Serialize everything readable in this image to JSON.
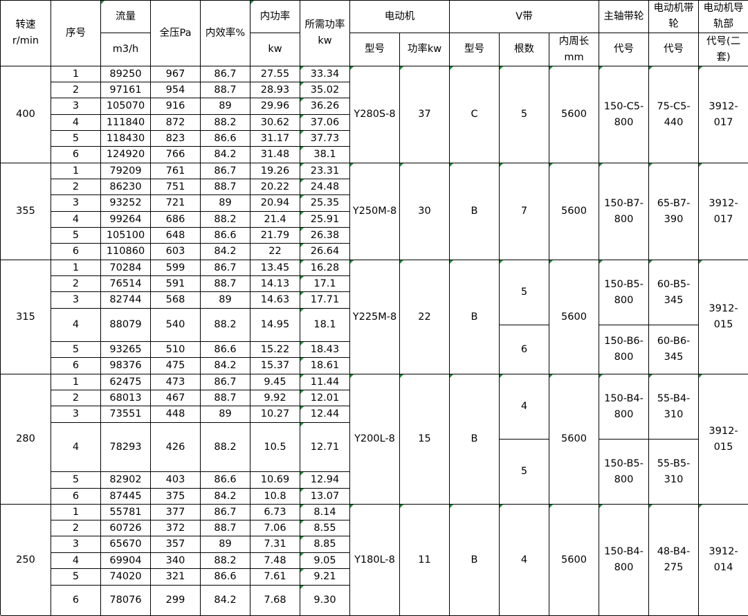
{
  "header": {
    "speed": [
      "转速",
      "r/min"
    ],
    "seq": "序号",
    "flow": [
      "流量",
      "m3/h"
    ],
    "pressure": "全压Pa",
    "efficiency": "内效率%",
    "inner_power": [
      "内功率",
      "kw"
    ],
    "required_power": [
      "所需功率",
      "kw"
    ],
    "motor": "电动机",
    "motor_model": "型号",
    "motor_power": "功率kw",
    "vbelt": "V带",
    "vbelt_type": "型号",
    "vbelt_count": "根数",
    "vbelt_length": [
      "内周长",
      "mm"
    ],
    "main_pulley": "主轴带轮",
    "main_pulley_code": "代号",
    "motor_pulley": "电动机带轮",
    "motor_pulley_code": "代号",
    "rail": "电动机导轨部",
    "rail_code": "代号(二套)"
  },
  "groups": [
    {
      "speed": "400",
      "rows": [
        [
          "1",
          "89250",
          "967",
          "86.7",
          "27.55",
          "33.34"
        ],
        [
          "2",
          "97161",
          "954",
          "88.7",
          "28.93",
          "35.02"
        ],
        [
          "3",
          "105070",
          "916",
          "89",
          "29.96",
          "36.26"
        ],
        [
          "4",
          "111840",
          "872",
          "88.2",
          "30.62",
          "37.06"
        ],
        [
          "5",
          "118430",
          "823",
          "86.6",
          "31.17",
          "37.73"
        ],
        [
          "6",
          "124920",
          "766",
          "84.2",
          "31.48",
          "38.1"
        ]
      ],
      "motor_model": "Y280S-8",
      "motor_power": "37",
      "belt_type": "C",
      "belt_counts": [
        "5"
      ],
      "belt_length": "5600",
      "main_pulley": [
        "150-C5-800"
      ],
      "motor_pulley": [
        "75-C5-440"
      ],
      "rail": "3912-017"
    },
    {
      "speed": "355",
      "rows": [
        [
          "1",
          "79209",
          "761",
          "86.7",
          "19.26",
          "23.31"
        ],
        [
          "2",
          "86230",
          "751",
          "88.7",
          "20.22",
          "24.48"
        ],
        [
          "3",
          "93252",
          "721",
          "89",
          "20.94",
          "25.35"
        ],
        [
          "4",
          "99264",
          "686",
          "88.2",
          "21.4",
          "25.91"
        ],
        [
          "5",
          "105100",
          "648",
          "86.6",
          "21.79",
          "26.38"
        ],
        [
          "6",
          "110860",
          "603",
          "84.2",
          "22",
          "26.64"
        ]
      ],
      "motor_model": "Y250M-8",
      "motor_power": "30",
      "belt_type": "B",
      "belt_counts": [
        "7"
      ],
      "belt_length": "5600",
      "main_pulley": [
        "150-B7-800"
      ],
      "motor_pulley": [
        "65-B7-390"
      ],
      "rail": "3912-017"
    },
    {
      "speed": "315",
      "rows": [
        [
          "1",
          "70284",
          "599",
          "86.7",
          "13.45",
          "16.28"
        ],
        [
          "2",
          "76514",
          "591",
          "88.7",
          "14.13",
          "17.1"
        ],
        [
          "3",
          "82744",
          "568",
          "89",
          "14.63",
          "17.71"
        ],
        [
          "4",
          "88079",
          "540",
          "88.2",
          "14.95",
          "18.1"
        ],
        [
          "5",
          "93265",
          "510",
          "86.6",
          "15.22",
          "18.43"
        ],
        [
          "6",
          "98376",
          "475",
          "84.2",
          "15.37",
          "18.61"
        ]
      ],
      "motor_model": "Y225M-8",
      "motor_power": "22",
      "belt_type": "B",
      "belt_counts": [
        "5",
        "6"
      ],
      "belt_length": "5600",
      "main_pulley": [
        "150-B5-800",
        "150-B6-800"
      ],
      "motor_pulley": [
        "60-B5-345",
        "60-B6-345"
      ],
      "rail": "3912-015"
    },
    {
      "speed": "280",
      "rows": [
        [
          "1",
          "62475",
          "473",
          "86.7",
          "9.45",
          "11.44"
        ],
        [
          "2",
          "68013",
          "467",
          "88.7",
          "9.92",
          "12.01"
        ],
        [
          "3",
          "73551",
          "448",
          "89",
          "10.27",
          "12.44"
        ],
        [
          "4",
          "78293",
          "426",
          "88.2",
          "10.5",
          "12.71"
        ],
        [
          "5",
          "82902",
          "403",
          "86.6",
          "10.69",
          "12.94"
        ],
        [
          "6",
          "87445",
          "375",
          "84.2",
          "10.8",
          "13.07"
        ]
      ],
      "motor_model": "Y200L-8",
      "motor_power": "15",
      "belt_type": "B",
      "belt_counts": [
        "4",
        "5"
      ],
      "belt_length": "5600",
      "main_pulley": [
        "150-B4-800",
        "150-B5-800"
      ],
      "motor_pulley": [
        "55-B4-310",
        "55-B5-310"
      ],
      "rail": "3912-015"
    },
    {
      "speed": "250",
      "rows": [
        [
          "1",
          "55781",
          "377",
          "86.7",
          "6.73",
          "8.14"
        ],
        [
          "2",
          "60726",
          "372",
          "88.7",
          "7.06",
          "8.55"
        ],
        [
          "3",
          "65670",
          "357",
          "89",
          "7.31",
          "8.85"
        ],
        [
          "4",
          "69904",
          "340",
          "88.2",
          "7.48",
          "9.05"
        ],
        [
          "5",
          "74020",
          "321",
          "86.6",
          "7.61",
          "9.21"
        ],
        [
          "6",
          "78076",
          "299",
          "84.2",
          "7.68",
          "9.30"
        ]
      ],
      "motor_model": "Y180L-8",
      "motor_power": "11",
      "belt_type": "B",
      "belt_counts": [
        "4"
      ],
      "belt_length": "5600",
      "main_pulley": [
        "150-B4-800"
      ],
      "motor_pulley": [
        "48-B4-275"
      ],
      "rail": "3912-014"
    }
  ]
}
